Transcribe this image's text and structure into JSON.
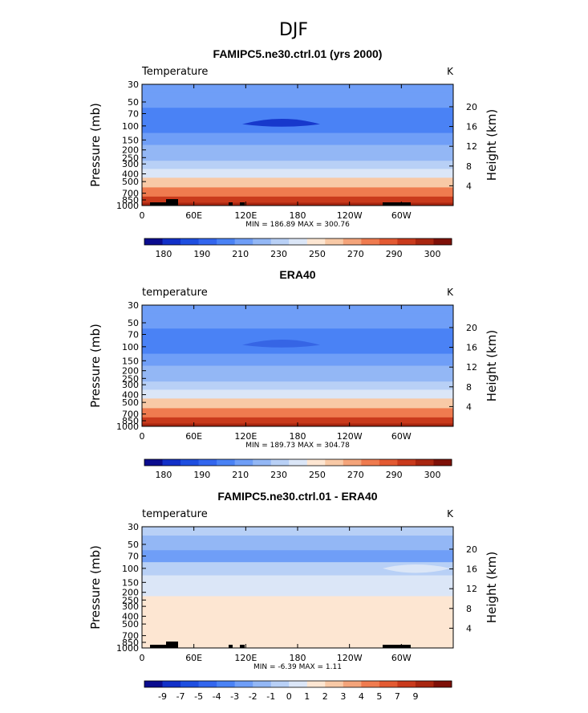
{
  "figure_title": "DJF",
  "chart_data": [
    {
      "type": "heatmap",
      "title": "FAMIPC5.ne30.ctrl.01 (yrs 2000)",
      "left_label": "Temperature",
      "units": "K",
      "ylabel": "Pressure (mb)",
      "ylabel2": "Height (km)",
      "xticks": [
        "0",
        "60E",
        "120E",
        "180",
        "120W",
        "60W"
      ],
      "yticks": [
        "30",
        "50",
        "70",
        "100",
        "150",
        "200",
        "250",
        "300",
        "400",
        "500",
        "700",
        "850",
        "1000"
      ],
      "yticks2": [
        "20",
        "16",
        "12",
        "8",
        "4"
      ],
      "stats": "MIN = 186.89   MAX = 300.76",
      "colorbar_labels": [
        "180",
        "190",
        "210",
        "230",
        "250",
        "270",
        "290",
        "300"
      ],
      "bands_by_level": [
        {
          "p": 30,
          "temp": 219
        },
        {
          "p": 50,
          "temp": 212
        },
        {
          "p": 70,
          "temp": 207
        },
        {
          "p": 100,
          "temp": 205
        },
        {
          "p": 150,
          "temp": 213
        },
        {
          "p": 200,
          "temp": 220
        },
        {
          "p": 250,
          "temp": 227
        },
        {
          "p": 300,
          "temp": 234
        },
        {
          "p": 400,
          "temp": 247
        },
        {
          "p": 500,
          "temp": 258
        },
        {
          "p": 700,
          "temp": 274
        },
        {
          "p": 850,
          "temp": 285
        },
        {
          "p": 1000,
          "temp": 294
        }
      ]
    },
    {
      "type": "heatmap",
      "title": "ERA40",
      "left_label": "temperature",
      "units": "K",
      "ylabel": "Pressure (mb)",
      "ylabel2": "Height (km)",
      "xticks": [
        "0",
        "60E",
        "120E",
        "180",
        "120W",
        "60W"
      ],
      "yticks": [
        "30",
        "50",
        "70",
        "100",
        "150",
        "200",
        "250",
        "300",
        "400",
        "500",
        "700",
        "850",
        "1000"
      ],
      "yticks2": [
        "20",
        "16",
        "12",
        "8",
        "4"
      ],
      "stats": "MIN = 189.73   MAX = 304.78",
      "colorbar_labels": [
        "180",
        "190",
        "210",
        "230",
        "250",
        "270",
        "290",
        "300"
      ],
      "bands_by_level": [
        {
          "p": 30,
          "temp": 218
        },
        {
          "p": 50,
          "temp": 212
        },
        {
          "p": 70,
          "temp": 207
        },
        {
          "p": 100,
          "temp": 206
        },
        {
          "p": 150,
          "temp": 213
        },
        {
          "p": 200,
          "temp": 220
        },
        {
          "p": 250,
          "temp": 227
        },
        {
          "p": 300,
          "temp": 235
        },
        {
          "p": 400,
          "temp": 248
        },
        {
          "p": 500,
          "temp": 259
        },
        {
          "p": 700,
          "temp": 275
        },
        {
          "p": 850,
          "temp": 286
        },
        {
          "p": 1000,
          "temp": 296
        }
      ]
    },
    {
      "type": "heatmap",
      "title": "FAMIPC5.ne30.ctrl.01 - ERA40",
      "left_label": "temperature",
      "units": "K",
      "ylabel": "Pressure (mb)",
      "ylabel2": "Height (km)",
      "xticks": [
        "0",
        "60E",
        "120E",
        "180",
        "120W",
        "60W"
      ],
      "yticks": [
        "30",
        "50",
        "70",
        "100",
        "150",
        "200",
        "250",
        "300",
        "400",
        "500",
        "700",
        "850",
        "1000"
      ],
      "yticks2": [
        "20",
        "16",
        "12",
        "8",
        "4"
      ],
      "stats": "MIN =  -6.39   MAX =   1.11",
      "colorbar_labels": [
        "-9",
        "-7",
        "-5",
        "-4",
        "-3",
        "-2",
        "-1",
        "0",
        "1",
        "2",
        "3",
        "4",
        "5",
        "7",
        "9"
      ],
      "bands_by_level": [
        {
          "p": 30,
          "diff": -3
        },
        {
          "p": 50,
          "diff": -4
        },
        {
          "p": 70,
          "diff": -5
        },
        {
          "p": 100,
          "diff": -3
        },
        {
          "p": 150,
          "diff": -2
        },
        {
          "p": 200,
          "diff": -2
        },
        {
          "p": 250,
          "diff": -1
        },
        {
          "p": 300,
          "diff": -1
        },
        {
          "p": 400,
          "diff": -1
        },
        {
          "p": 500,
          "diff": -1
        },
        {
          "p": 700,
          "diff": -1
        },
        {
          "p": 850,
          "diff": -1
        },
        {
          "p": 1000,
          "diff": -1
        }
      ]
    }
  ],
  "palette": {
    "temp": [
      "#0b0c8e",
      "#1230c8",
      "#1e4ee0",
      "#3366ee",
      "#4a82f5",
      "#6f9ef7",
      "#93b7f5",
      "#b8d0f6",
      "#dbe6f7",
      "#fde6d2",
      "#f8c9a6",
      "#f4a47a",
      "#ef7b4f",
      "#e35a32",
      "#c93a1c",
      "#a82610",
      "#7e1008"
    ],
    "temp_levels": [
      180,
      185,
      190,
      200,
      210,
      220,
      230,
      240,
      250,
      255,
      260,
      270,
      280,
      285,
      290,
      300
    ],
    "diff": [
      "#0b0c8e",
      "#1230c8",
      "#1e4ee0",
      "#3366ee",
      "#4a82f5",
      "#6f9ef7",
      "#93b7f5",
      "#b8d0f6",
      "#dbe6f7",
      "#fde6d2",
      "#f8c9a6",
      "#f4a47a",
      "#ef7b4f",
      "#e35a32",
      "#c93a1c",
      "#a82610",
      "#7e1008"
    ],
    "diff_levels": [
      -9,
      -8,
      -7,
      -6,
      -5,
      -4,
      -3,
      -2,
      -1,
      0,
      1,
      2,
      3,
      4,
      5,
      7
    ],
    "topography": "#000000"
  }
}
